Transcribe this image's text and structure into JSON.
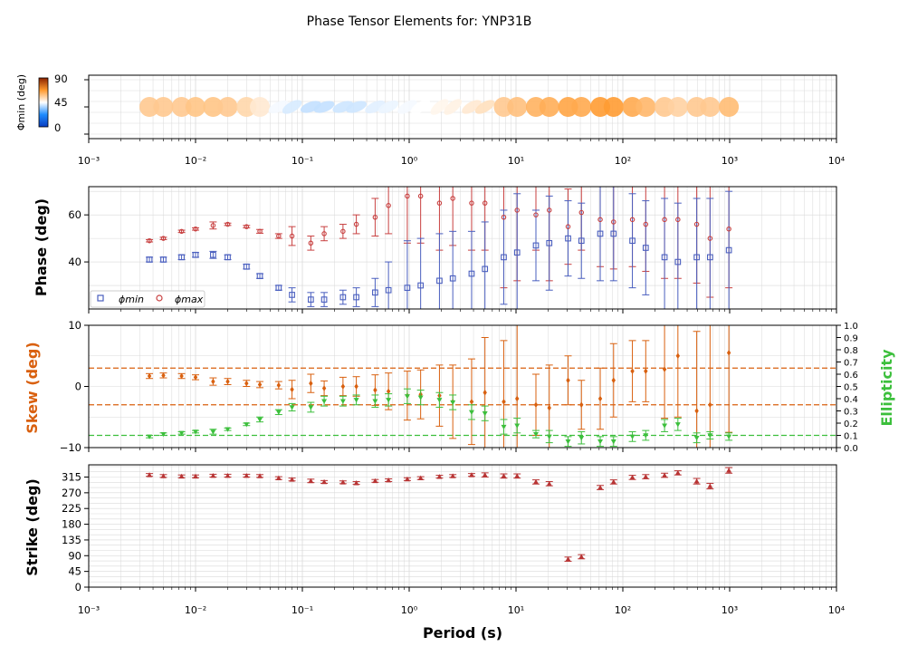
{
  "title": "Phase Tensor Elements for: YNP31B",
  "colors": {
    "phi_min": "#4a5fbf",
    "phi_max": "#c84040",
    "skew": "#d9600f",
    "ellipticity": "#3cbf3c",
    "strike": "#b83434",
    "grid": "#d9d9d9",
    "skew_label": "#d9600f",
    "ellipticity_label": "#3cbf3c"
  },
  "x_axis": {
    "label": "Period (s)",
    "scale": "log",
    "range": [
      0.001,
      10000
    ],
    "tick_labels": [
      "10⁻³",
      "10⁻²",
      "10⁻¹",
      "10⁰",
      "10¹",
      "10²",
      "10³",
      "10⁴"
    ]
  },
  "colorbar": {
    "label": "Φmin (deg)",
    "ticks": [
      "0",
      "45",
      "90"
    ]
  },
  "panels": {
    "phase": {
      "ylabel": "Phase (deg)",
      "yticks": [
        "40",
        "60"
      ],
      "ylim": [
        20,
        72
      ]
    },
    "skew": {
      "ylabel": "Skew (deg)",
      "yticks": [
        "−10",
        "0",
        "10"
      ],
      "ylim": [
        -10,
        10
      ]
    },
    "ellipticity": {
      "ylabel": "Ellipticity",
      "yticks": [
        "0.0",
        "0.1",
        "0.2",
        "0.3",
        "0.4",
        "0.5",
        "0.6",
        "0.7",
        "0.8",
        "0.9",
        "1.0"
      ],
      "ylim": [
        0,
        1
      ]
    },
    "strike": {
      "ylabel": "Strike (deg)",
      "yticks": [
        "0",
        "45",
        "90",
        "135",
        "180",
        "225",
        "270",
        "315"
      ],
      "ylim": [
        0,
        350
      ]
    }
  },
  "legend": {
    "phi_min": "ϕmin",
    "phi_max": "ϕmax"
  },
  "chart_data": [
    {
      "type": "scatter",
      "name": "phase tensor ellipses",
      "x": [
        0.0037,
        0.005,
        0.0074,
        0.01,
        0.0146,
        0.02,
        0.03,
        0.04,
        0.06,
        0.08,
        0.12,
        0.16,
        0.24,
        0.32,
        0.48,
        0.64,
        0.96,
        1.28,
        1.92,
        2.56,
        3.84,
        5.12,
        7.68,
        10.24,
        15.36,
        20.48,
        30.72,
        40.96,
        61.44,
        81.92,
        122.88,
        163.84,
        245.76,
        327.68,
        491.52,
        655.36,
        983.04
      ],
      "phi_min": [
        42,
        42,
        42,
        43,
        43,
        42,
        39,
        35,
        29,
        26,
        24,
        24,
        25,
        25,
        27,
        28,
        29,
        30,
        32,
        33,
        35,
        37,
        42,
        44,
        47,
        48,
        50,
        49,
        52,
        52,
        49,
        46,
        42,
        40,
        42,
        42,
        45
      ],
      "orientation_deg": [
        0,
        0,
        0,
        0,
        0,
        0,
        0,
        0,
        -25,
        -30,
        -20,
        -20,
        -20,
        -20,
        -25,
        -25,
        -30,
        -30,
        -40,
        -40,
        -30,
        -30,
        0,
        0,
        0,
        0,
        0,
        0,
        0,
        0,
        0,
        0,
        0,
        0,
        0,
        0,
        0
      ]
    },
    {
      "type": "scatter",
      "x": [
        0.0037,
        0.005,
        0.0074,
        0.01,
        0.0146,
        0.02,
        0.03,
        0.04,
        0.06,
        0.08,
        0.12,
        0.16,
        0.24,
        0.32,
        0.48,
        0.64,
        0.96,
        1.28,
        1.92,
        2.56,
        3.84,
        5.12,
        7.68,
        10.24,
        15.36,
        20.48,
        30.72,
        40.96,
        61.44,
        81.92,
        122.88,
        163.84,
        245.76,
        327.68,
        491.52,
        655.36,
        983.04
      ],
      "ylabel": "Phase (deg)",
      "ylim": [
        20,
        72
      ],
      "series": [
        {
          "name": "ϕmin",
          "values": [
            41,
            41,
            42,
            43,
            43,
            42,
            38,
            34,
            29,
            26,
            24,
            24,
            25,
            25,
            27,
            28,
            29,
            30,
            32,
            33,
            35,
            37,
            42,
            44,
            47,
            48,
            50,
            49,
            52,
            52,
            49,
            46,
            42,
            40,
            42,
            42,
            45
          ],
          "errors": [
            1,
            1,
            1,
            1,
            1.5,
            1,
            1,
            1,
            1,
            3,
            3,
            3,
            3,
            4,
            6,
            12,
            20,
            20,
            20,
            20,
            18,
            20,
            20,
            25,
            15,
            20,
            16,
            16,
            20,
            20,
            20,
            20,
            25,
            25,
            25,
            25,
            25
          ]
        },
        {
          "name": "ϕmax",
          "values": [
            49,
            50,
            53,
            54,
            55.5,
            56,
            55,
            53,
            51,
            51,
            48,
            52,
            53,
            56,
            59,
            64,
            68,
            68,
            65,
            67,
            65,
            65,
            59,
            62,
            60,
            62,
            55,
            61,
            58,
            57,
            58,
            56,
            58,
            58,
            56,
            50,
            54
          ],
          "errors": [
            0.5,
            0.5,
            0.5,
            0.5,
            1.5,
            0.5,
            0.5,
            0.8,
            1,
            4,
            3,
            3,
            3,
            4,
            8,
            12,
            20,
            20,
            20,
            20,
            20,
            20,
            30,
            30,
            15,
            30,
            16,
            16,
            20,
            20,
            20,
            20,
            25,
            25,
            25,
            25,
            25
          ]
        }
      ]
    },
    {
      "type": "scatter",
      "x": [
        0.0037,
        0.005,
        0.0074,
        0.01,
        0.0146,
        0.02,
        0.03,
        0.04,
        0.06,
        0.08,
        0.12,
        0.16,
        0.24,
        0.32,
        0.48,
        0.64,
        0.96,
        1.28,
        1.92,
        2.56,
        3.84,
        5.12,
        7.68,
        10.24,
        15.36,
        20.48,
        30.72,
        40.96,
        61.44,
        81.92,
        122.88,
        163.84,
        245.76,
        327.68,
        491.52,
        655.36,
        983.04
      ],
      "ylabel": "Skew (deg)",
      "ylim": [
        -10,
        10
      ],
      "reference_lines": [
        3,
        -3
      ],
      "values": [
        1.7,
        1.8,
        1.7,
        1.5,
        0.8,
        0.8,
        0.5,
        0.3,
        0.2,
        -0.5,
        0.5,
        -0.3,
        0,
        0,
        -0.6,
        -0.8,
        -1.5,
        -1.3,
        -1.5,
        -2.5,
        -2.5,
        -1,
        -2.5,
        -2,
        -3,
        -3.5,
        1,
        -3,
        -2,
        1,
        2.5,
        2.5,
        2.8,
        5,
        -4,
        -3,
        5.5
      ],
      "errors": [
        0.4,
        0.4,
        0.4,
        0.4,
        0.6,
        0.5,
        0.5,
        0.5,
        0.6,
        1.5,
        1.5,
        1.2,
        1.5,
        1.6,
        2.5,
        3,
        4,
        4,
        5,
        6,
        7,
        9,
        10,
        14,
        5,
        7,
        4,
        4,
        5,
        6,
        5,
        5,
        8,
        10,
        13,
        13,
        13
      ]
    },
    {
      "type": "scatter",
      "x": [
        0.0037,
        0.005,
        0.0074,
        0.01,
        0.0146,
        0.02,
        0.03,
        0.04,
        0.06,
        0.08,
        0.12,
        0.16,
        0.24,
        0.32,
        0.48,
        0.64,
        0.96,
        1.28,
        1.92,
        2.56,
        3.84,
        5.12,
        7.68,
        10.24,
        15.36,
        20.48,
        30.72,
        40.96,
        61.44,
        81.92,
        122.88,
        163.84,
        245.76,
        327.68,
        491.52,
        655.36,
        983.04
      ],
      "ylabel": "Ellipticity",
      "ylim": [
        0,
        1
      ],
      "reference_lines": [
        0.1
      ],
      "values": [
        0.09,
        0.11,
        0.12,
        0.13,
        0.13,
        0.15,
        0.19,
        0.23,
        0.29,
        0.33,
        0.33,
        0.38,
        0.38,
        0.39,
        0.38,
        0.39,
        0.42,
        0.41,
        0.39,
        0.37,
        0.29,
        0.28,
        0.17,
        0.18,
        0.11,
        0.09,
        0.05,
        0.08,
        0.05,
        0.05,
        0.09,
        0.1,
        0.18,
        0.19,
        0.08,
        0.1,
        0.09
      ],
      "errors": [
        0.01,
        0.01,
        0.01,
        0.01,
        0.02,
        0.01,
        0.01,
        0.02,
        0.02,
        0.03,
        0.04,
        0.04,
        0.04,
        0.04,
        0.05,
        0.05,
        0.06,
        0.06,
        0.06,
        0.06,
        0.06,
        0.06,
        0.06,
        0.06,
        0.03,
        0.05,
        0.04,
        0.05,
        0.04,
        0.04,
        0.04,
        0.04,
        0.05,
        0.05,
        0.04,
        0.03,
        0.03
      ]
    },
    {
      "type": "scatter",
      "x": [
        0.0037,
        0.005,
        0.0074,
        0.01,
        0.0146,
        0.02,
        0.03,
        0.04,
        0.06,
        0.08,
        0.12,
        0.16,
        0.24,
        0.32,
        0.48,
        0.64,
        0.96,
        1.28,
        1.92,
        2.56,
        3.84,
        5.12,
        7.68,
        10.24,
        15.36,
        20.48,
        30.72,
        40.96,
        61.44,
        81.92,
        122.88,
        163.84,
        245.76,
        327.68,
        491.52,
        655.36,
        983.04
      ],
      "ylabel": "Strike (deg)",
      "ylim": [
        0,
        350
      ],
      "values": [
        321,
        318,
        317,
        317,
        319,
        319,
        319,
        318,
        312,
        308,
        304,
        301,
        300,
        298,
        304,
        306,
        309,
        312,
        316,
        318,
        321,
        321,
        318,
        318,
        301,
        296,
        80,
        87,
        285,
        301,
        314,
        316,
        320,
        327,
        303,
        289,
        334
      ],
      "errors": [
        4,
        4,
        4,
        4,
        4,
        4,
        4,
        4,
        4,
        4,
        5,
        4,
        4,
        4,
        4,
        4,
        4,
        4,
        4,
        4,
        4,
        6,
        6,
        6,
        6,
        6,
        6,
        6,
        6,
        6,
        6,
        6,
        6,
        6,
        8,
        8,
        8
      ]
    }
  ]
}
